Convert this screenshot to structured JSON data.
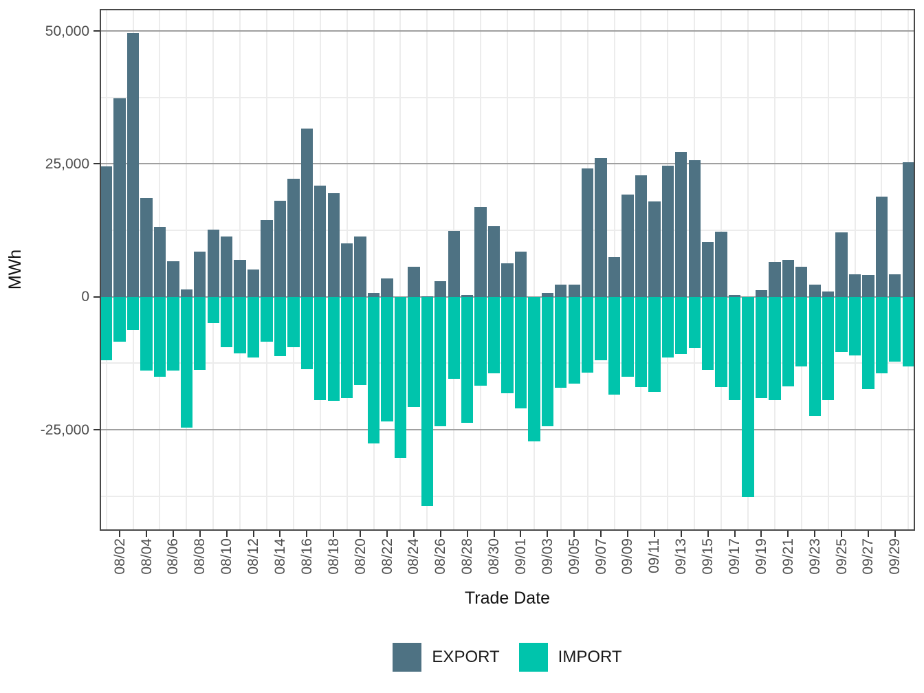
{
  "figure": {
    "background": "#ffffff"
  },
  "chart_data": {
    "type": "bar",
    "title": "",
    "xlabel": "Trade Date",
    "ylabel": "MWh",
    "orientation": "vertical-diverging",
    "grid": {
      "major_color": "#a0a0a0",
      "minor_color": "#ececec",
      "vertical_minor": true
    },
    "categories": [
      "08/01",
      "08/02",
      "08/03",
      "08/04",
      "08/05",
      "08/06",
      "08/07",
      "08/08",
      "08/09",
      "08/10",
      "08/11",
      "08/12",
      "08/13",
      "08/14",
      "08/15",
      "08/16",
      "08/17",
      "08/18",
      "08/19",
      "08/20",
      "08/21",
      "08/22",
      "08/23",
      "08/24",
      "08/25",
      "08/26",
      "08/27",
      "08/28",
      "08/29",
      "08/30",
      "08/31",
      "09/01",
      "09/02",
      "09/03",
      "09/04",
      "09/05",
      "09/06",
      "09/07",
      "09/08",
      "09/09",
      "09/10",
      "09/11",
      "09/12",
      "09/13",
      "09/14",
      "09/15",
      "09/16",
      "09/17",
      "09/18",
      "09/19",
      "09/20",
      "09/21",
      "09/22",
      "09/23",
      "09/24",
      "09/25",
      "09/26",
      "09/27",
      "09/28",
      "09/29",
      "09/30"
    ],
    "series": [
      {
        "name": "EXPORT",
        "color": "#4E7283",
        "values": [
          24500,
          37300,
          49600,
          18600,
          13200,
          6700,
          1400,
          8500,
          12600,
          11400,
          6900,
          5100,
          14400,
          18100,
          22200,
          31700,
          20900,
          19500,
          10000,
          11400,
          800,
          3400,
          0,
          5700,
          100,
          3000,
          12400,
          300,
          16900,
          13300,
          6300,
          8500,
          0,
          800,
          2300,
          2300,
          24100,
          26100,
          7500,
          19200,
          22800,
          17900,
          24700,
          27200,
          25700,
          10300,
          12300,
          400,
          0,
          1300,
          6500,
          7000,
          5600,
          2300,
          1000,
          12100,
          4200,
          4100,
          18800,
          4200,
          25300
        ]
      },
      {
        "name": "IMPORT",
        "color": "#00C4AC",
        "values": [
          -11900,
          -8400,
          -6200,
          -13900,
          -15000,
          -13900,
          -24600,
          -13700,
          -4900,
          -9500,
          -10600,
          -11400,
          -8500,
          -11100,
          -9500,
          -13600,
          -19400,
          -19600,
          -19100,
          -16600,
          -27600,
          -23500,
          -30300,
          -20700,
          -39400,
          -24300,
          -15400,
          -23700,
          -16700,
          -14400,
          -18200,
          -21000,
          -27200,
          -24400,
          -17100,
          -16300,
          -14300,
          -11900,
          -18400,
          -15100,
          -17000,
          -17900,
          -11400,
          -10800,
          -9600,
          -13700,
          -17000,
          -19500,
          -37700,
          -19000,
          -19500,
          -16800,
          -13100,
          -22400,
          -19400,
          -10400,
          -11000,
          -17400,
          -14400,
          -12200,
          -13100
        ]
      }
    ],
    "y_axis": {
      "ticks": [
        {
          "label": "50,000",
          "value": 50000
        },
        {
          "label": "25,000",
          "value": 25000
        },
        {
          "label": "0",
          "value": 0
        },
        {
          "label": "-25,000",
          "value": -25000
        }
      ],
      "minor_gridlines": [
        37500,
        12500,
        -12500,
        -37500
      ],
      "range": [
        -44000,
        54100
      ]
    },
    "x_axis": {
      "labeled_ticks": [
        "08/02",
        "08/04",
        "08/06",
        "08/08",
        "08/10",
        "08/12",
        "08/14",
        "08/16",
        "08/18",
        "08/20",
        "08/22",
        "08/24",
        "08/26",
        "08/28",
        "08/30",
        "09/01",
        "09/03",
        "09/05",
        "09/07",
        "09/09",
        "09/11",
        "09/13",
        "09/15",
        "09/17",
        "09/19",
        "09/21",
        "09/23",
        "09/25",
        "09/27",
        "09/29"
      ]
    },
    "legend": {
      "position": "bottom",
      "items": [
        {
          "label": "EXPORT",
          "color": "#4E7283"
        },
        {
          "label": "IMPORT",
          "color": "#00C4AC"
        }
      ]
    }
  }
}
